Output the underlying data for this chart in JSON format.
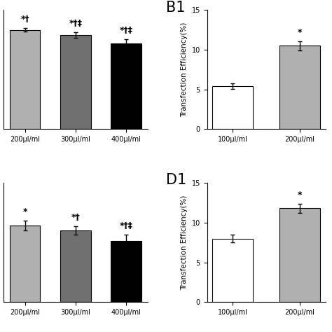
{
  "panel_A": {
    "categories": [
      "200μl/ml",
      "300μl/ml",
      "400μl/ml"
    ],
    "values": [
      15.0,
      14.2,
      13.0
    ],
    "errors": [
      0.3,
      0.45,
      0.55
    ],
    "colors": [
      "#b0b0b0",
      "#707070",
      "#000000"
    ],
    "annotations": [
      "*†",
      "*†‡",
      "*†‡"
    ],
    "ylim": [
      0,
      18
    ],
    "yticks": [
      0,
      5,
      10,
      15
    ],
    "show_yaxis": true
  },
  "panel_B": {
    "label": "B1",
    "categories": [
      "100μl/ml",
      "200μl/ml"
    ],
    "values": [
      5.4,
      10.5
    ],
    "errors": [
      0.35,
      0.55
    ],
    "colors": [
      "#ffffff",
      "#b0b0b0"
    ],
    "annotations": [
      "",
      "*"
    ],
    "ylabel": "Transfection Efficiency(%)",
    "ylim": [
      0,
      15
    ],
    "yticks": [
      0,
      5,
      10,
      15
    ]
  },
  "panel_C": {
    "categories": [
      "200μl/ml",
      "300μl/ml",
      "400μl/ml"
    ],
    "values": [
      4.5,
      4.2,
      3.6
    ],
    "errors": [
      0.3,
      0.25,
      0.35
    ],
    "colors": [
      "#b0b0b0",
      "#707070",
      "#000000"
    ],
    "annotations": [
      "*",
      "*†",
      "*†‡"
    ],
    "ylim": [
      0,
      7
    ],
    "yticks": [
      0,
      2,
      4,
      6
    ],
    "show_yaxis": true
  },
  "panel_D": {
    "label": "D1",
    "categories": [
      "100μl/ml",
      "200μl/ml"
    ],
    "values": [
      8.0,
      11.8
    ],
    "errors": [
      0.5,
      0.6
    ],
    "colors": [
      "#ffffff",
      "#b0b0b0"
    ],
    "annotations": [
      "",
      "*"
    ],
    "ylabel": "Transfection Efficiency(%)",
    "ylim": [
      0,
      15
    ],
    "yticks": [
      0,
      5,
      10,
      15
    ]
  },
  "annotation_fontsize": 9,
  "tick_fontsize": 7,
  "label_fontsize": 7.5,
  "panel_label_fontsize": 15,
  "bar_width": 0.6,
  "capsize": 2.5,
  "elinewidth": 1.0,
  "background_color": "#ffffff"
}
